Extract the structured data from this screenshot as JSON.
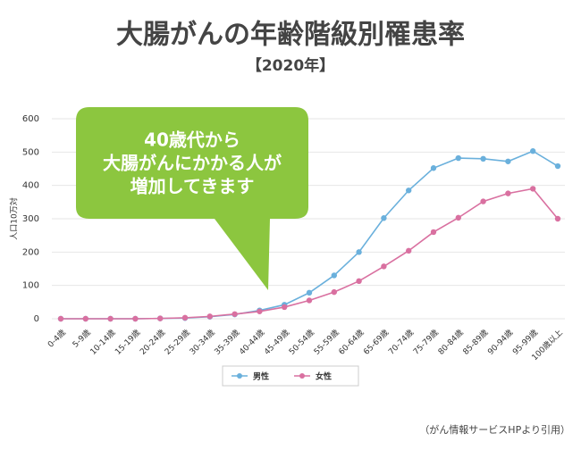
{
  "chart_data": {
    "type": "line",
    "title": "大腸がんの年齢階級別罹患率",
    "subtitle": "【2020年】",
    "y_label": "人口10万対",
    "categories": [
      "0-4歳",
      "5-9歳",
      "10-14歳",
      "15-19歳",
      "20-24歳",
      "25-29歳",
      "30-34歳",
      "35-39歳",
      "40-44歳",
      "45-49歳",
      "50-54歳",
      "55-59歳",
      "60-64歳",
      "65-69歳",
      "70-74歳",
      "75-79歳",
      "80-84歳",
      "85-89歳",
      "90-94歳",
      "95-99歳",
      "100歳以上"
    ],
    "series": [
      {
        "name": "男性",
        "color": "#6ab0dc",
        "values": [
          0,
          0,
          0,
          0,
          1,
          2,
          6,
          13,
          25,
          42,
          78,
          130,
          200,
          302,
          385,
          452,
          482,
          480,
          472,
          503,
          458
        ]
      },
      {
        "name": "女性",
        "color": "#d970a0",
        "values": [
          0,
          0,
          0,
          0,
          1,
          3,
          7,
          14,
          22,
          35,
          55,
          80,
          113,
          157,
          204,
          260,
          303,
          352,
          376,
          390,
          300
        ]
      }
    ],
    "ylim": [
      0,
      600
    ],
    "yticks": [
      0,
      100,
      200,
      300,
      400,
      500,
      600
    ],
    "grid": true,
    "legend": "bottom",
    "annotation": {
      "lines": [
        "40歳代から",
        "大腸がんにかかる人が",
        "増加してきます"
      ],
      "color": "#8cc63f"
    },
    "source": "（がん情報サービスHPより引用）"
  }
}
